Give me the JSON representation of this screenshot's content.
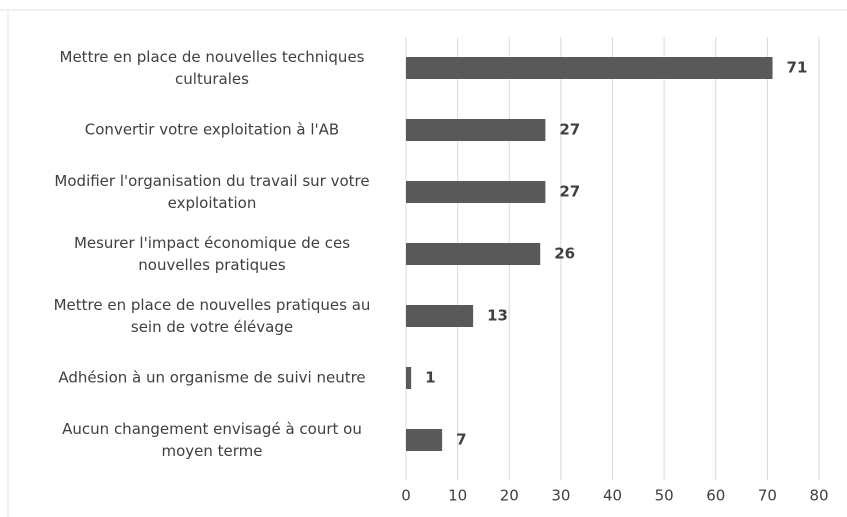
{
  "chart_data": {
    "type": "bar",
    "orientation": "horizontal",
    "categories": [
      "Mettre en place de nouvelles techniques\nculturales",
      "Convertir votre exploitation à l'AB",
      "Modifier l'organisation du travail sur votre\nexploitation",
      "Mesurer l'impact économique de ces\nnouvelles pratiques",
      "Mettre en place de nouvelles pratiques au\nsein de votre élévage",
      "Adhésion à un organisme de suivi neutre",
      "Aucun changement envisagé à court ou\nmoyen terme"
    ],
    "values": [
      71,
      27,
      27,
      26,
      13,
      1,
      7
    ],
    "color": "#595959",
    "xlim": [
      0,
      80
    ],
    "xticks": [
      0,
      10,
      20,
      30,
      40,
      50,
      60,
      70,
      80
    ],
    "grid": true
  }
}
